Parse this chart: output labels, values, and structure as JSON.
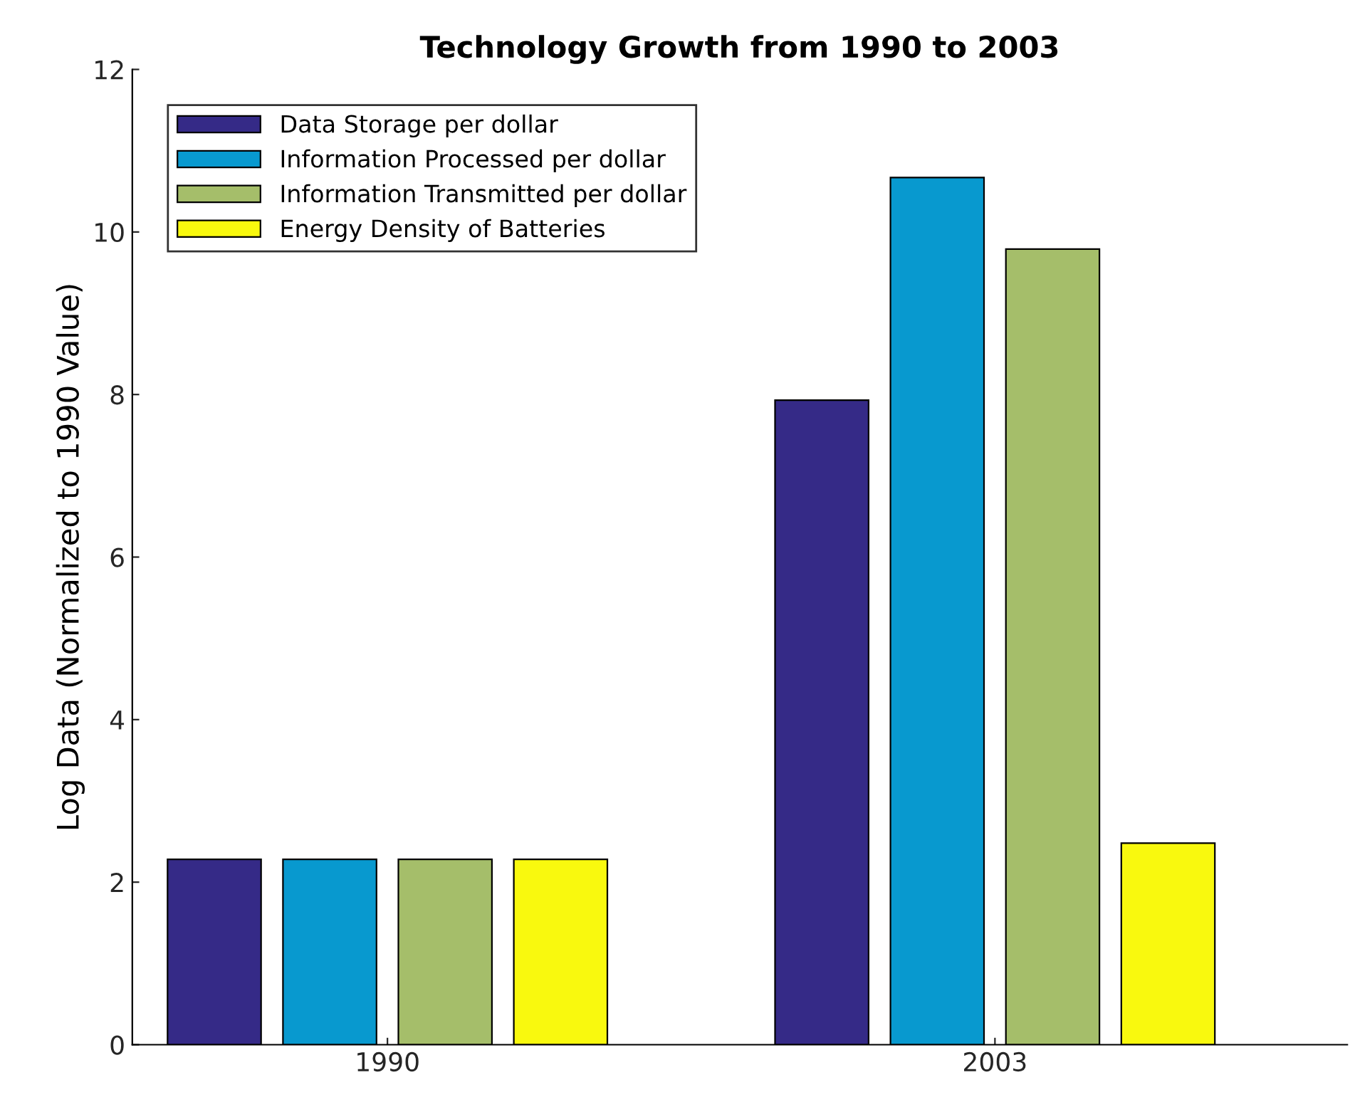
{
  "chart_data": {
    "type": "bar",
    "title": "Technology Growth from 1990 to 2003",
    "ylabel": "Log Data (Normalized to 1990 Value)",
    "categories": [
      "1990",
      "2003"
    ],
    "series": [
      {
        "name": "Data Storage per dollar",
        "color": "#352a87",
        "values": [
          2.28,
          7.93
        ]
      },
      {
        "name": "Information Processed per dollar",
        "color": "#0899cf",
        "values": [
          2.28,
          10.67
        ]
      },
      {
        "name": "Information Transmitted per dollar",
        "color": "#a5be6a",
        "values": [
          2.28,
          9.79
        ]
      },
      {
        "name": "Energy Density of Batteries",
        "color": "#f9f90e",
        "values": [
          2.28,
          2.48
        ]
      }
    ],
    "ylim": [
      0,
      12
    ],
    "yticks": [
      0,
      2,
      4,
      6,
      8,
      10,
      12
    ],
    "grid": false,
    "legend": "top left"
  }
}
